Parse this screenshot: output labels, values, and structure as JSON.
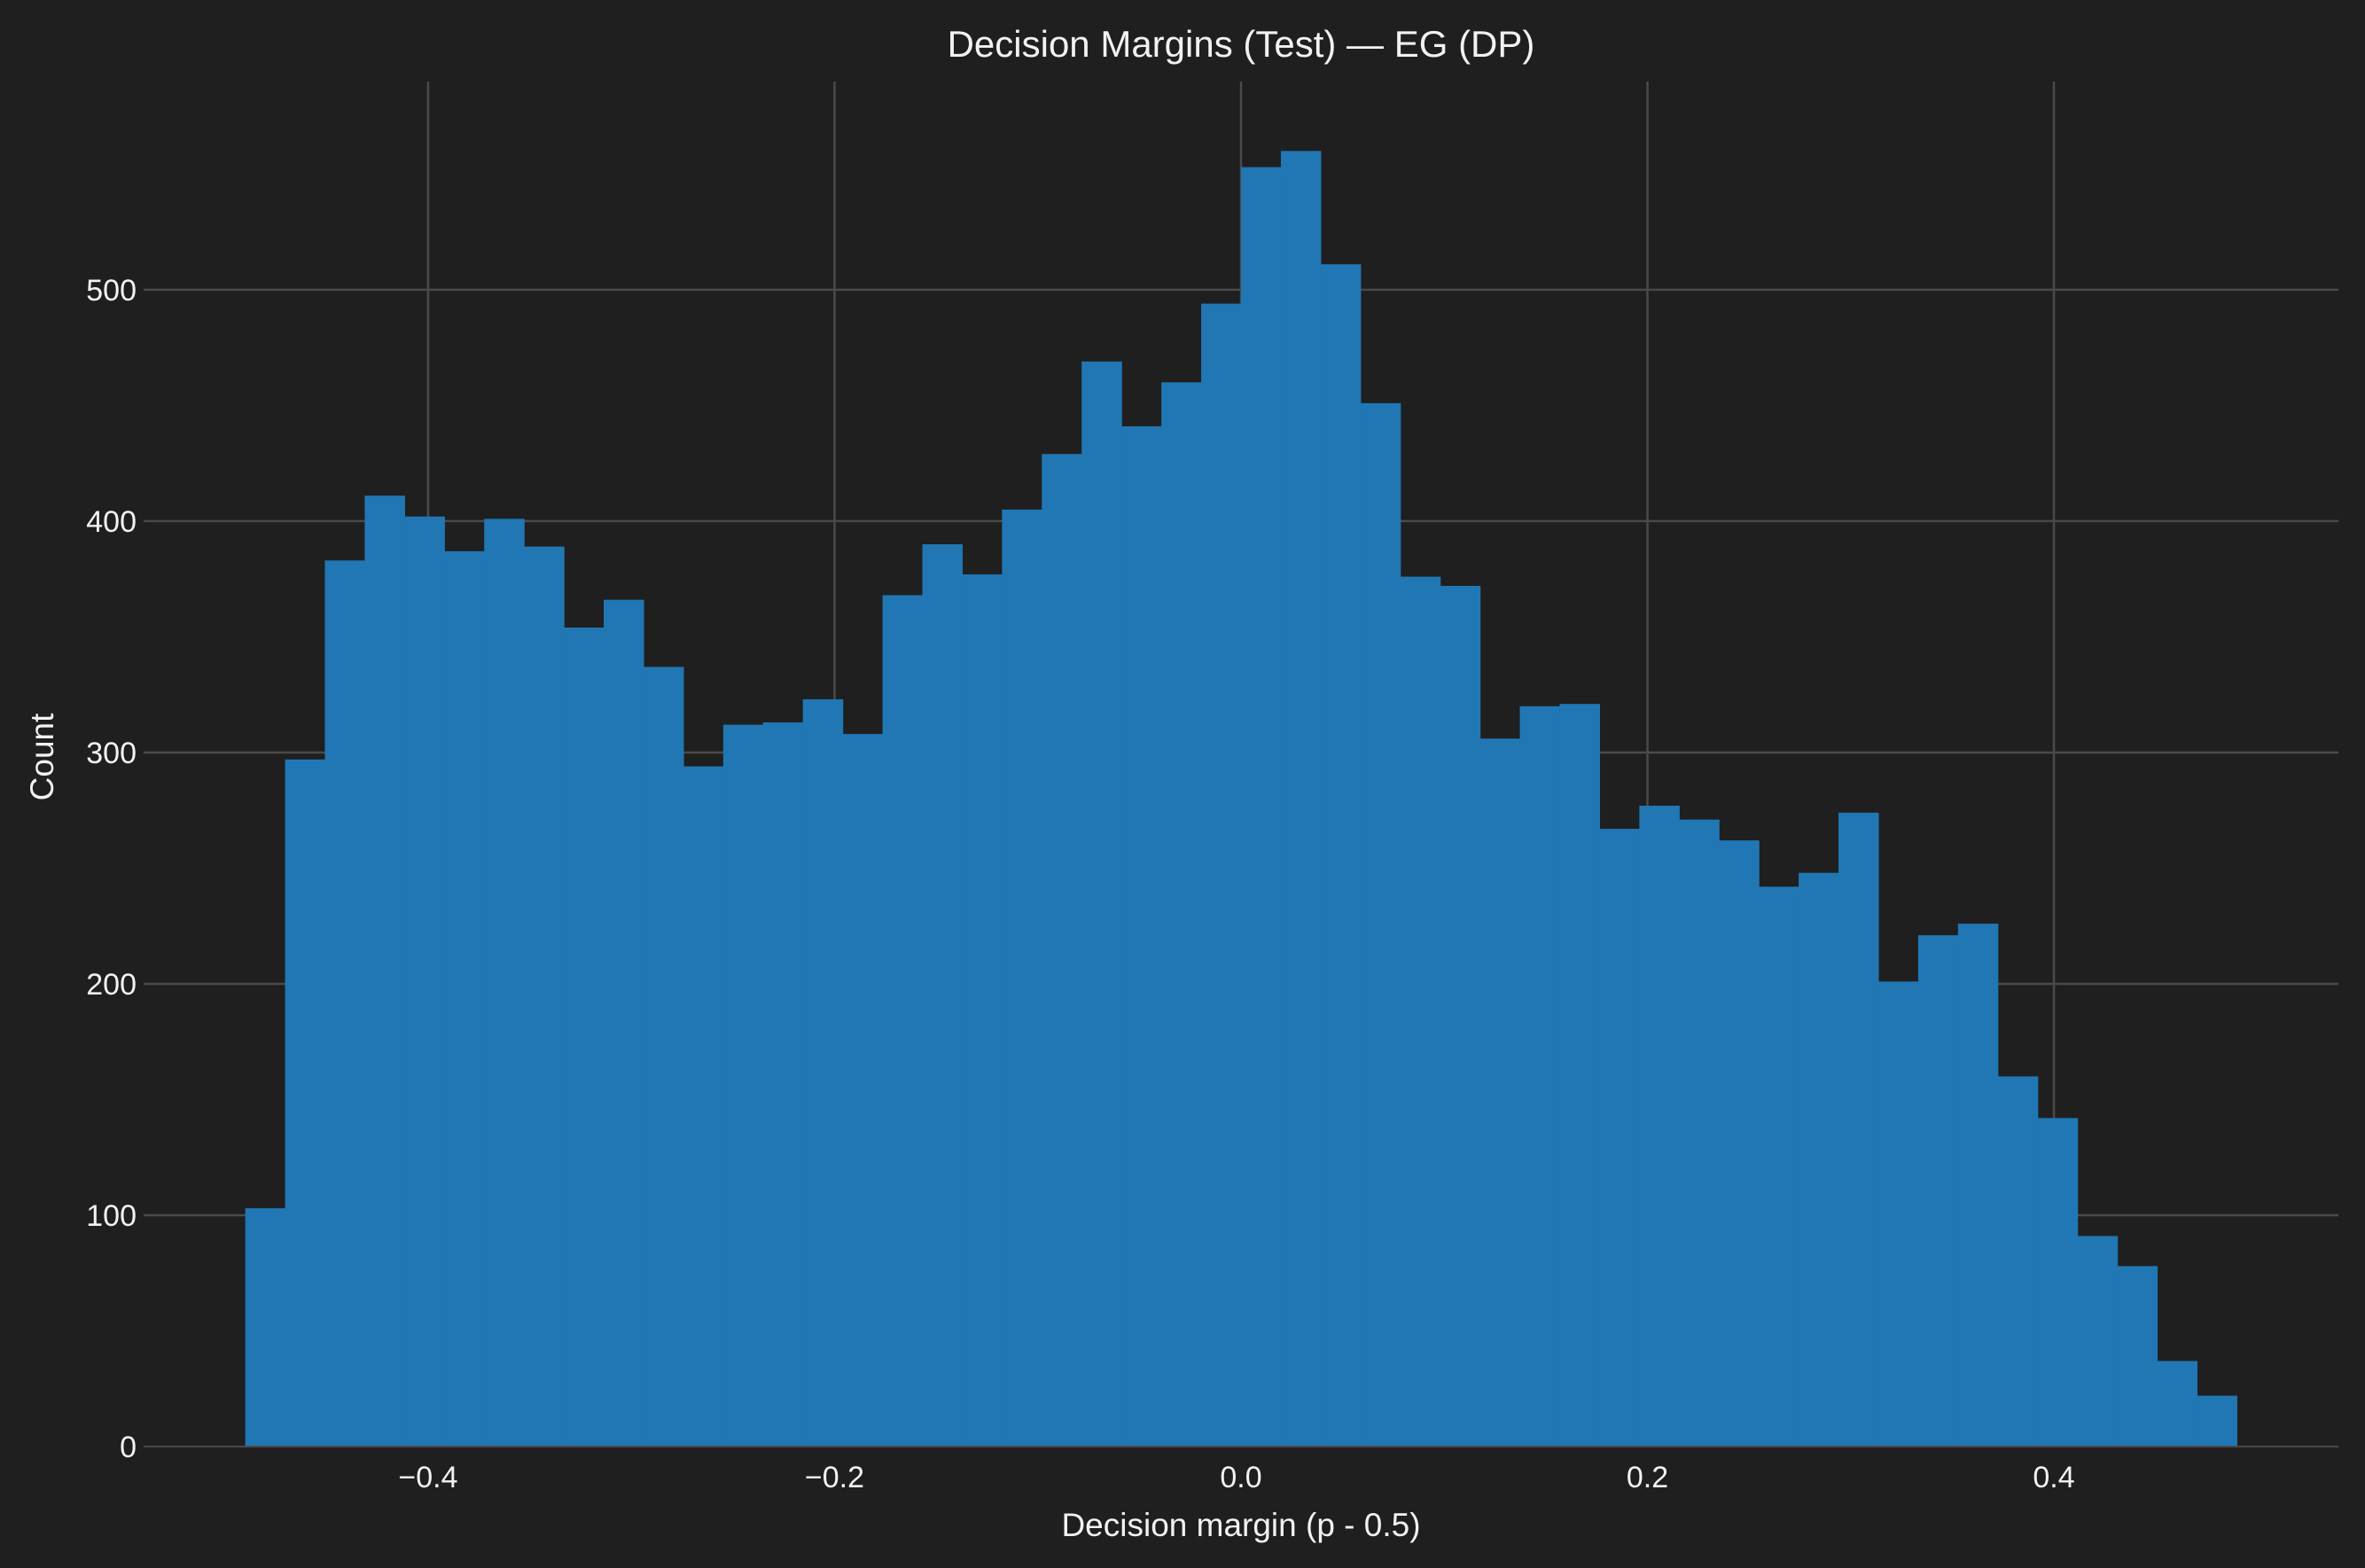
{
  "chart_data": {
    "type": "bar",
    "subtype": "histogram",
    "title": "Decision Margins (Test) — EG (DP)",
    "xlabel": "Decision margin (p - 0.5)",
    "ylabel": "Count",
    "xlim": [
      -0.54,
      0.54
    ],
    "ylim": [
      0,
      590
    ],
    "xticks": [
      -0.4,
      -0.2,
      0.0,
      0.2,
      0.4
    ],
    "xtick_labels": [
      "−0.4",
      "−0.2",
      "0.0",
      "0.2",
      "0.4"
    ],
    "yticks": [
      0,
      100,
      200,
      300,
      400,
      500
    ],
    "ytick_labels": [
      "0",
      "100",
      "200",
      "300",
      "400",
      "500"
    ],
    "grid": true,
    "bar_color": "#2077b4",
    "background": "#1f1f1f",
    "bin_start": -0.49,
    "bin_width": 0.0196,
    "values": [
      103,
      297,
      383,
      411,
      402,
      387,
      401,
      389,
      354,
      366,
      337,
      294,
      312,
      313,
      323,
      308,
      368,
      390,
      377,
      405,
      429,
      469,
      441,
      460,
      494,
      553,
      560,
      511,
      451,
      376,
      372,
      306,
      320,
      321,
      267,
      277,
      271,
      262,
      242,
      248,
      274,
      201,
      221,
      226,
      160,
      142,
      91,
      78,
      37,
      22
    ]
  }
}
